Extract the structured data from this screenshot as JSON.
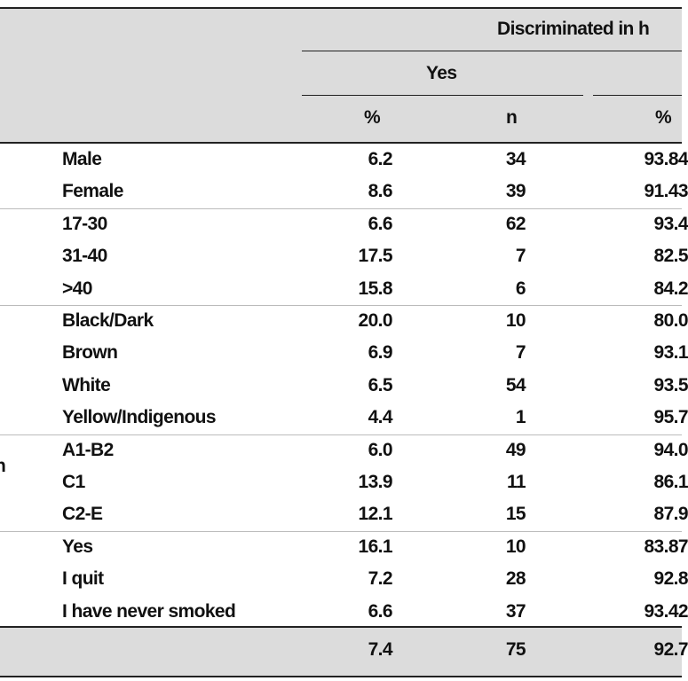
{
  "header": {
    "title": "Discriminated in h",
    "group": "Yes",
    "columns": [
      "%",
      "n",
      "%"
    ]
  },
  "groups": [
    {
      "rows": [
        [
          "Male",
          "6.2",
          "34",
          "93.84"
        ],
        [
          "Female",
          "8.6",
          "39",
          "91.43"
        ]
      ]
    },
    {
      "rows": [
        [
          "17-30",
          "6.6",
          "62",
          "93.4"
        ],
        [
          "31-40",
          "17.5",
          "7",
          "82.5"
        ],
        [
          ">40",
          "15.8",
          "6",
          "84.2"
        ]
      ]
    },
    {
      "rows": [
        [
          "Black/Dark",
          "20.0",
          "10",
          "80.0"
        ],
        [
          "Brown",
          "6.9",
          "7",
          "93.1"
        ],
        [
          "White",
          "6.5",
          "54",
          "93.5"
        ],
        [
          "Yellow/Indigenous",
          "4.4",
          "1",
          "95.7"
        ]
      ]
    },
    {
      "label": "n",
      "rows": [
        [
          "A1-B2",
          "6.0",
          "49",
          "94.0"
        ],
        [
          "C1",
          "13.9",
          "11",
          "86.1"
        ],
        [
          "C2-E",
          "12.1",
          "15",
          "87.9"
        ]
      ]
    },
    {
      "rows": [
        [
          "Yes",
          "16.1",
          "10",
          "83.87"
        ],
        [
          "I quit",
          "7.2",
          "28",
          "92.8"
        ],
        [
          "I have never smoked",
          "6.6",
          "37",
          "93.42"
        ]
      ]
    }
  ],
  "total": [
    "7.4",
    "75",
    "92.7"
  ]
}
